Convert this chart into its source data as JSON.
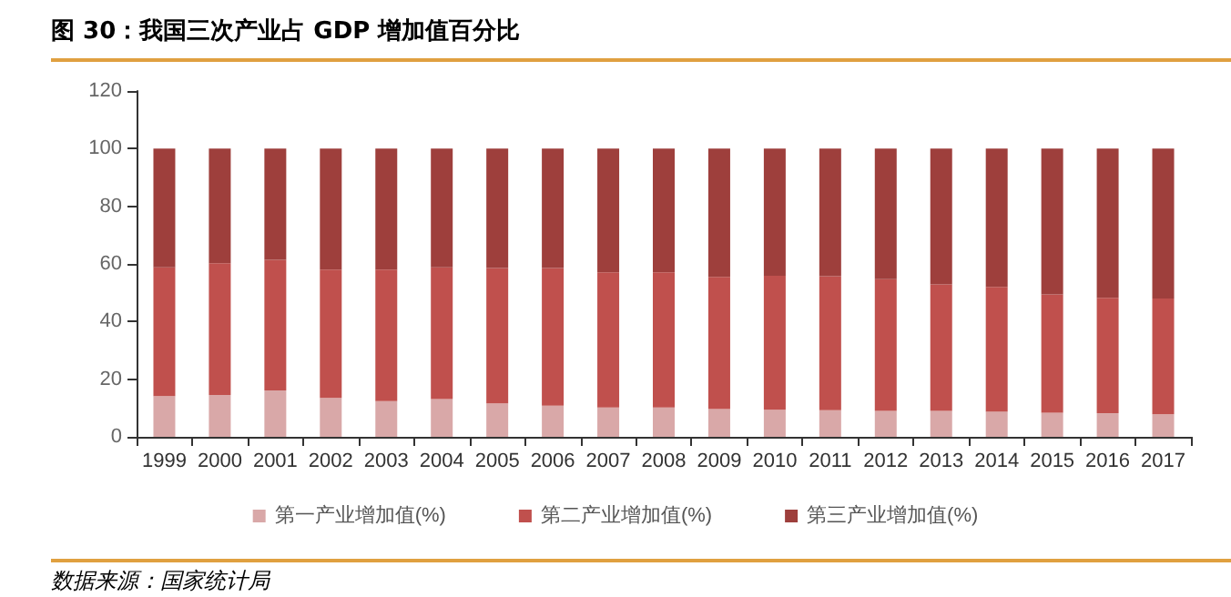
{
  "chart_data": {
    "type": "bar",
    "title": "图 30：我国三次产业占 GDP 增加值百分比",
    "stacked": true,
    "categories": [
      "1999",
      "2000",
      "2001",
      "2002",
      "2003",
      "2004",
      "2005",
      "2006",
      "2007",
      "2008",
      "2009",
      "2010",
      "2011",
      "2012",
      "2013",
      "2014",
      "2015",
      "2016",
      "2017"
    ],
    "series": [
      {
        "name": "第一产业增加值(%)",
        "color": "#d9a8a8",
        "values": [
          14.1,
          14.5,
          16.1,
          13.5,
          12.4,
          13.1,
          11.6,
          10.8,
          10.2,
          10.2,
          9.6,
          9.4,
          9.2,
          9.0,
          9.0,
          8.8,
          8.4,
          8.2,
          7.8
        ]
      },
      {
        "name": "第二产业增加值(%)",
        "color": "#c0504d",
        "values": [
          44.7,
          45.7,
          45.3,
          44.5,
          45.6,
          45.7,
          47.0,
          47.8,
          46.9,
          46.9,
          45.9,
          46.5,
          46.5,
          45.7,
          43.9,
          43.2,
          41.0,
          40.0,
          40.2
        ]
      },
      {
        "name": "第三产业增加值(%)",
        "color": "#9e3f3c",
        "values": [
          41.2,
          39.8,
          38.6,
          42.0,
          42.0,
          41.2,
          41.4,
          41.4,
          42.9,
          42.9,
          44.5,
          44.1,
          44.3,
          45.3,
          47.1,
          48.0,
          50.6,
          51.8,
          52.0
        ]
      }
    ],
    "ylim": [
      0,
      120
    ],
    "yticks": [
      0,
      20,
      40,
      60,
      80,
      100,
      120
    ],
    "grid": false,
    "legend": "bottom",
    "annotations": [
      "数据来源：国家统计局"
    ]
  }
}
